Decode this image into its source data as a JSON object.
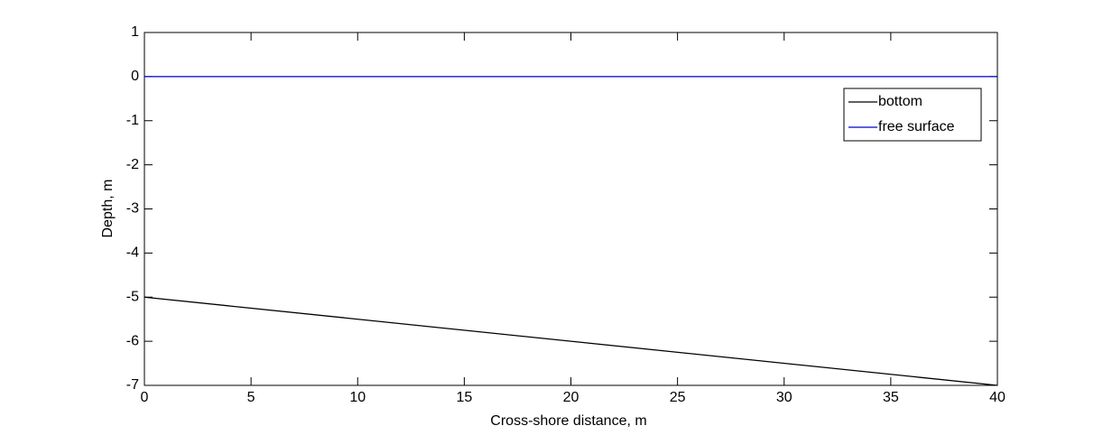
{
  "chart_data": {
    "type": "line",
    "x_label": "Cross-shore distance, m",
    "y_label": "Depth, m",
    "x": [
      0,
      40
    ],
    "series": [
      {
        "name": "bottom",
        "color": "#000000",
        "values": [
          -5,
          -7
        ]
      },
      {
        "name": "free surface",
        "color": "#0000cc",
        "values": [
          0,
          0
        ]
      }
    ],
    "xlim": [
      0,
      40
    ],
    "xticks": [
      0,
      5,
      10,
      15,
      20,
      25,
      30,
      35,
      40
    ],
    "ylim": [
      -7,
      1
    ],
    "yticks": [
      -7,
      -6,
      -5,
      -4,
      -3,
      -2,
      -1,
      0,
      1
    ],
    "grid": false,
    "legend": "upper right"
  }
}
